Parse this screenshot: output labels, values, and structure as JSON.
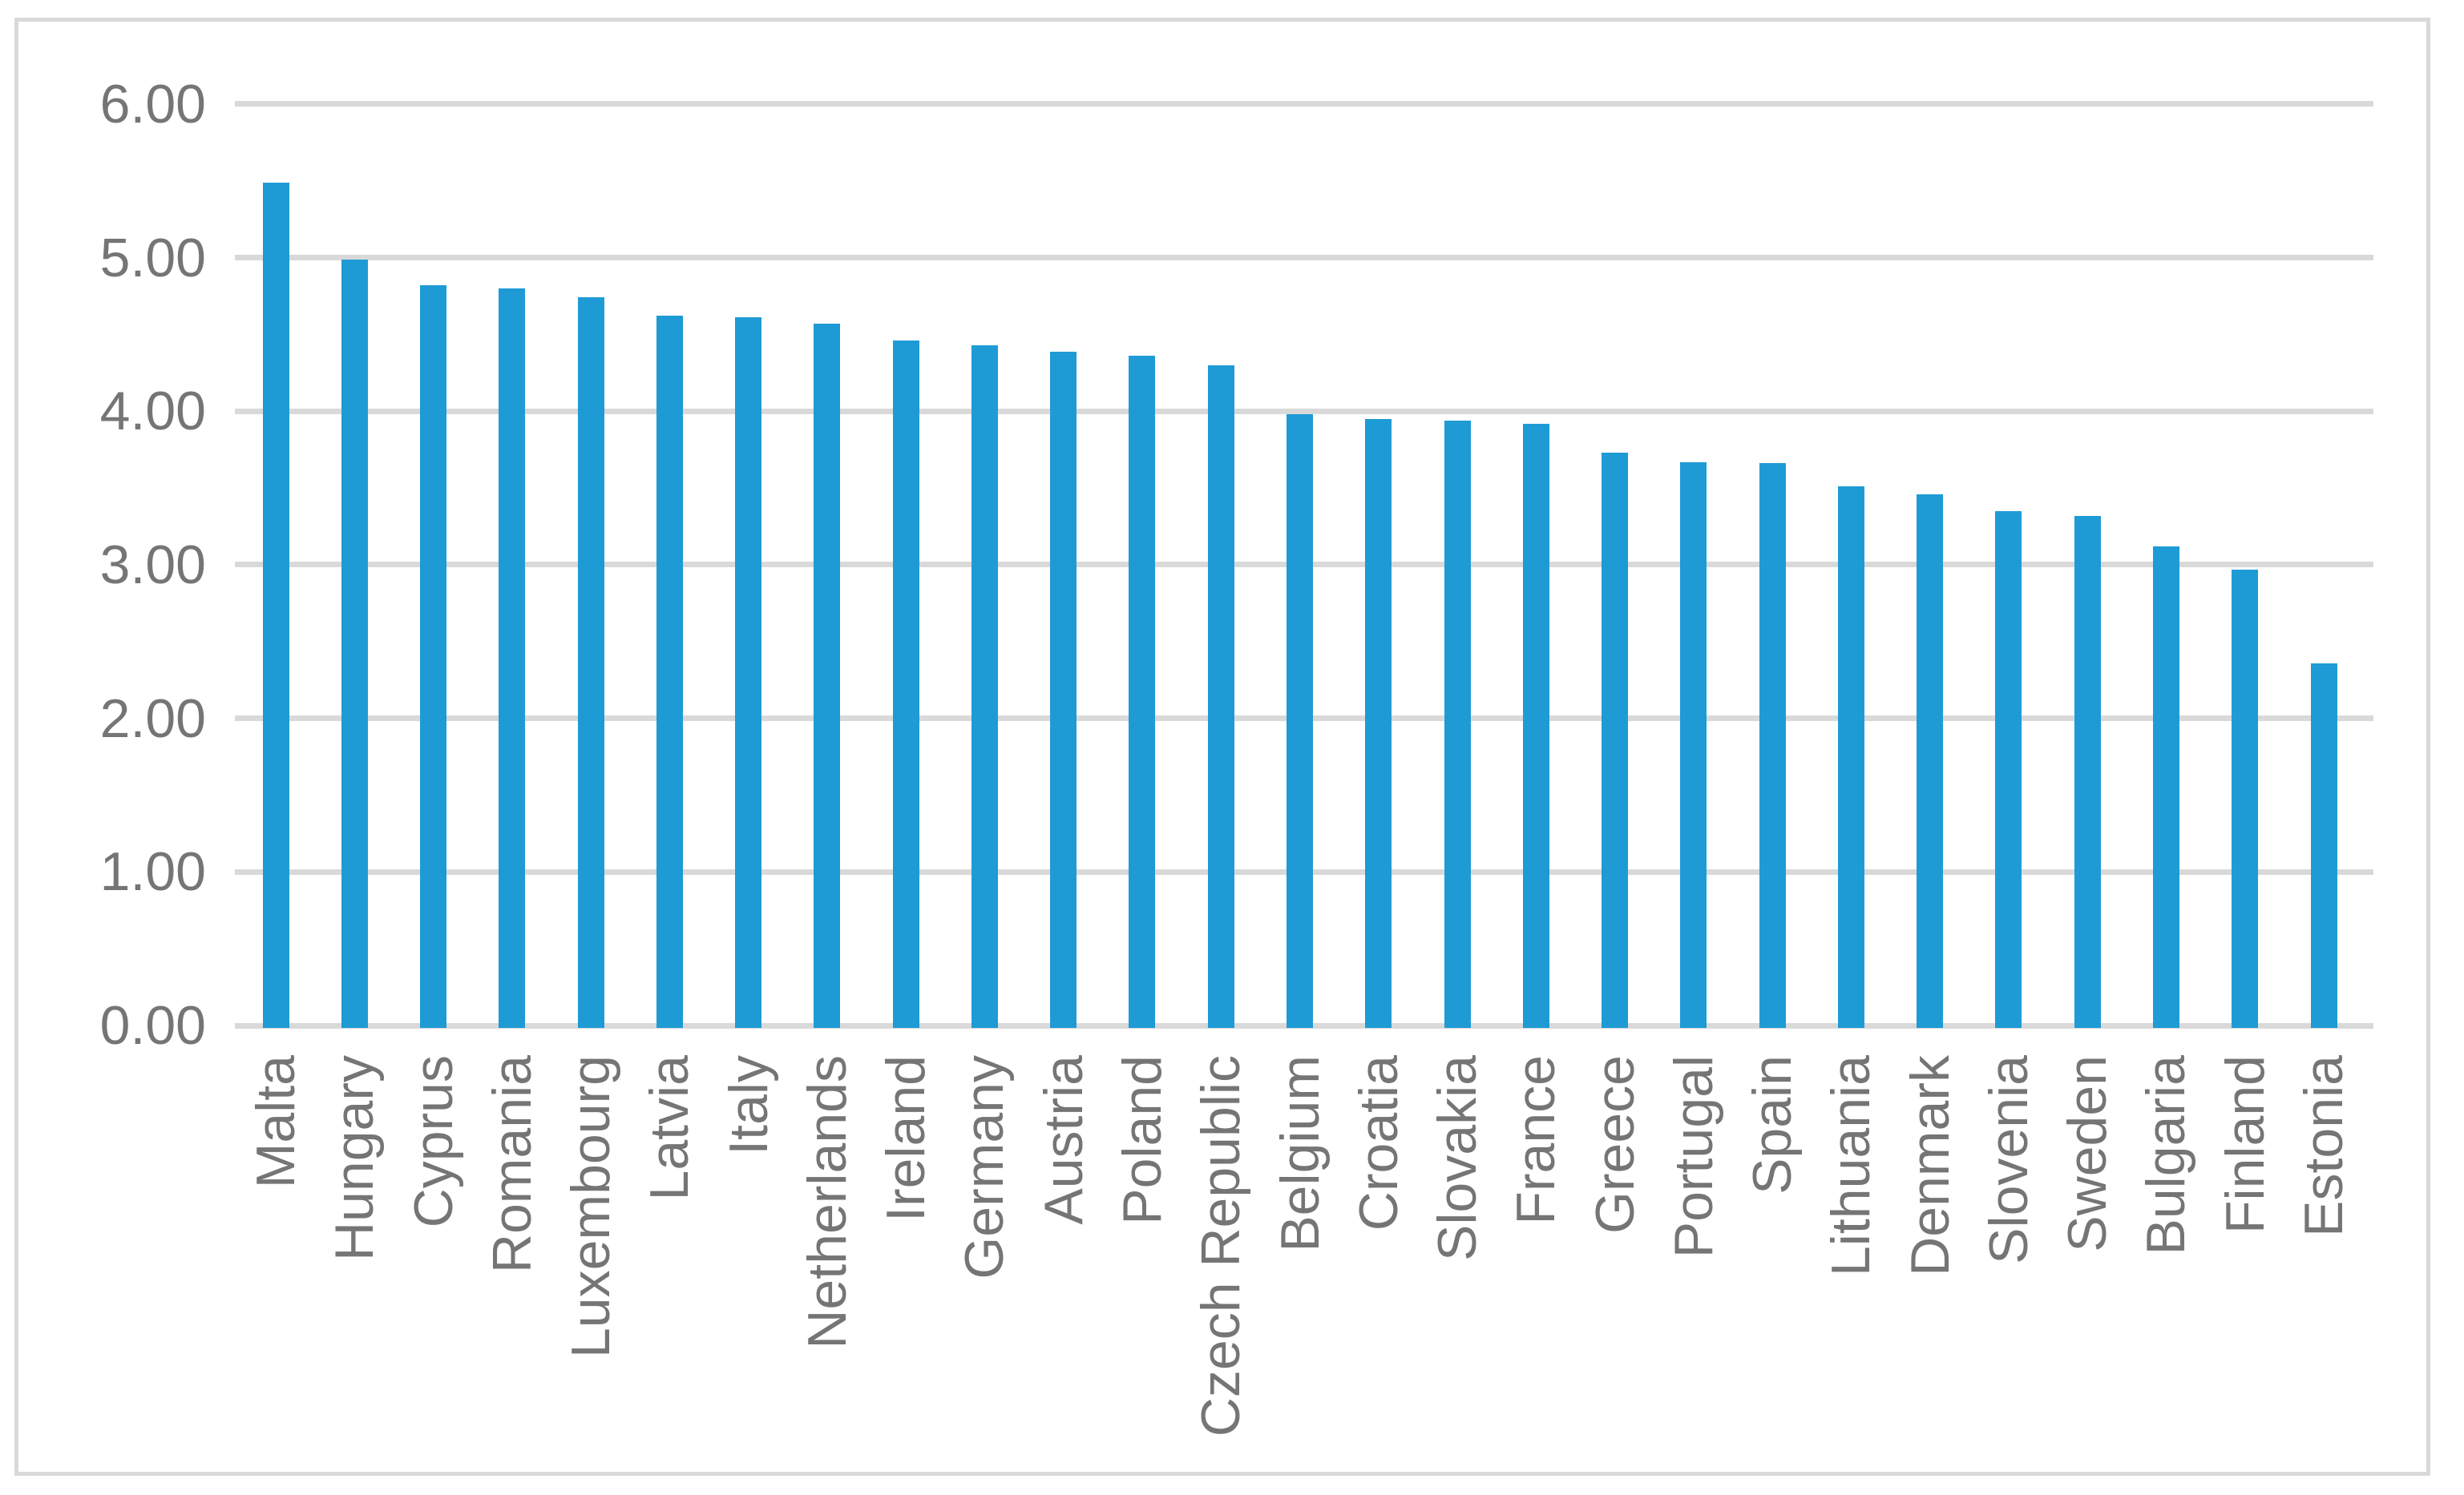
{
  "chart_data": {
    "type": "bar",
    "title": "",
    "xlabel": "",
    "ylabel": "",
    "categories": [
      "Malta",
      "Hungary",
      "Cyprus",
      "Romania",
      "Luxembourg",
      "Latvia",
      "Italy",
      "Netherlands",
      "Ireland",
      "Germany",
      "Austria",
      "Poland",
      "Czech Republic",
      "Belgium",
      "Croatia",
      "Slovakia",
      "France",
      "Greece",
      "Portugal",
      "Spain",
      "Lithuania",
      "Denmark",
      "Slovenia",
      "Sweden",
      "Bulgaria",
      "Finland",
      "Estonia"
    ],
    "values": [
      5.49,
      4.99,
      4.82,
      4.8,
      4.74,
      4.62,
      4.61,
      4.57,
      4.46,
      4.43,
      4.39,
      4.36,
      4.3,
      3.98,
      3.95,
      3.94,
      3.92,
      3.73,
      3.67,
      3.66,
      3.51,
      3.46,
      3.35,
      3.32,
      3.12,
      2.97,
      2.36
    ],
    "ylim": [
      0,
      6
    ],
    "ytick_step": 1,
    "ytick_labels": [
      "0.00",
      "1.00",
      "2.00",
      "3.00",
      "4.00",
      "5.00",
      "6.00"
    ],
    "grid": true,
    "legend": "none",
    "bar_color": "#1e9bd5",
    "gridline_color": "#d9d9d9",
    "axis_text_color": "#757575",
    "frame_border_color": "#d9d9d9",
    "background_color": "#ffffff"
  }
}
